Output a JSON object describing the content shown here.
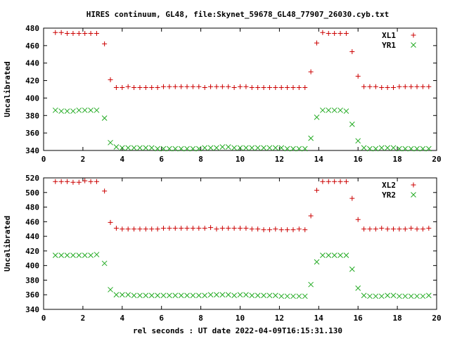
{
  "title": "HIRES continuum, GL48, file:Skynet_59678_GL48_77907_26030.cyb.txt",
  "xlabel": "rel seconds : UT date 2022-04-09T16:15:31.130",
  "colors": {
    "red": "#cc0000",
    "green": "#22aa22",
    "frame": "#000000"
  },
  "chart_data": [
    {
      "type": "scatter",
      "ylabel": "Uncalibrated",
      "xlim": [
        0,
        20
      ],
      "ylim": [
        340,
        480
      ],
      "xticks": [
        0,
        2,
        4,
        6,
        8,
        10,
        12,
        14,
        16,
        18,
        20
      ],
      "yticks": [
        340,
        360,
        380,
        400,
        420,
        440,
        460,
        480
      ],
      "legend_position": "top-right",
      "x": [
        0.6,
        0.9,
        1.2,
        1.5,
        1.8,
        2.1,
        2.4,
        2.7,
        3.1,
        3.4,
        3.7,
        4.0,
        4.3,
        4.6,
        4.9,
        5.2,
        5.5,
        5.8,
        6.1,
        6.4,
        6.7,
        7.0,
        7.3,
        7.6,
        7.9,
        8.2,
        8.5,
        8.8,
        9.1,
        9.4,
        9.7,
        10.0,
        10.3,
        10.6,
        10.9,
        11.2,
        11.5,
        11.8,
        12.1,
        12.4,
        12.7,
        13.0,
        13.3,
        13.6,
        13.9,
        14.2,
        14.5,
        14.8,
        15.1,
        15.4,
        15.7,
        16.0,
        16.3,
        16.6,
        16.9,
        17.2,
        17.5,
        17.8,
        18.1,
        18.4,
        18.7,
        19.0,
        19.3,
        19.6
      ],
      "series": [
        {
          "name": "XL1",
          "marker": "plus",
          "color": "#cc0000",
          "values": [
            475,
            475,
            474,
            474,
            474,
            474,
            474,
            474,
            462,
            421,
            412,
            412,
            413,
            412,
            412,
            412,
            412,
            412,
            413,
            413,
            413,
            413,
            413,
            413,
            413,
            412,
            413,
            413,
            413,
            413,
            412,
            413,
            413,
            412,
            412,
            412,
            412,
            412,
            412,
            412,
            412,
            412,
            412,
            430,
            463,
            475,
            474,
            474,
            474,
            474,
            453,
            425,
            413,
            413,
            413,
            412,
            412,
            412,
            413,
            413,
            413,
            413,
            413,
            413
          ]
        },
        {
          "name": "YR1",
          "marker": "cross",
          "color": "#22aa22",
          "values": [
            386,
            385,
            385,
            385,
            386,
            386,
            386,
            386,
            377,
            349,
            344,
            343,
            343,
            343,
            343,
            343,
            343,
            342,
            342,
            342,
            342,
            342,
            342,
            342,
            342,
            343,
            343,
            343,
            344,
            344,
            343,
            343,
            343,
            343,
            343,
            343,
            343,
            343,
            343,
            342,
            342,
            342,
            342,
            354,
            378,
            386,
            386,
            386,
            386,
            385,
            370,
            351,
            343,
            342,
            342,
            343,
            343,
            343,
            342,
            342,
            342,
            342,
            342,
            342
          ]
        }
      ]
    },
    {
      "type": "scatter",
      "ylabel": "Uncalibrated",
      "xlim": [
        0,
        20
      ],
      "ylim": [
        340,
        520
      ],
      "xticks": [
        0,
        2,
        4,
        6,
        8,
        10,
        12,
        14,
        16,
        18,
        20
      ],
      "yticks": [
        340,
        360,
        380,
        400,
        420,
        440,
        460,
        480,
        500,
        520
      ],
      "legend_position": "top-right",
      "x": [
        0.6,
        0.9,
        1.2,
        1.5,
        1.8,
        2.1,
        2.4,
        2.7,
        3.1,
        3.4,
        3.7,
        4.0,
        4.3,
        4.6,
        4.9,
        5.2,
        5.5,
        5.8,
        6.1,
        6.4,
        6.7,
        7.0,
        7.3,
        7.6,
        7.9,
        8.2,
        8.5,
        8.8,
        9.1,
        9.4,
        9.7,
        10.0,
        10.3,
        10.6,
        10.9,
        11.2,
        11.5,
        11.8,
        12.1,
        12.4,
        12.7,
        13.0,
        13.3,
        13.6,
        13.9,
        14.2,
        14.5,
        14.8,
        15.1,
        15.4,
        15.7,
        16.0,
        16.3,
        16.6,
        16.9,
        17.2,
        17.5,
        17.8,
        18.1,
        18.4,
        18.7,
        19.0,
        19.3,
        19.6
      ],
      "series": [
        {
          "name": "XL2",
          "marker": "plus",
          "color": "#cc0000",
          "values": [
            515,
            515,
            515,
            514,
            514,
            516,
            515,
            515,
            502,
            459,
            451,
            450,
            450,
            450,
            450,
            450,
            450,
            450,
            451,
            451,
            451,
            451,
            451,
            451,
            451,
            451,
            452,
            450,
            451,
            451,
            451,
            451,
            451,
            450,
            450,
            449,
            449,
            450,
            449,
            449,
            449,
            450,
            449,
            468,
            503,
            515,
            515,
            515,
            515,
            515,
            492,
            463,
            450,
            450,
            450,
            451,
            450,
            450,
            450,
            450,
            451,
            450,
            450,
            451
          ]
        },
        {
          "name": "YR2",
          "marker": "cross",
          "color": "#22aa22",
          "values": [
            414,
            414,
            414,
            414,
            414,
            414,
            414,
            415,
            403,
            367,
            360,
            360,
            360,
            359,
            359,
            359,
            359,
            359,
            359,
            359,
            359,
            359,
            359,
            359,
            359,
            359,
            360,
            360,
            360,
            360,
            359,
            360,
            360,
            359,
            359,
            359,
            359,
            359,
            358,
            358,
            358,
            358,
            358,
            374,
            405,
            414,
            414,
            414,
            414,
            414,
            395,
            369,
            359,
            358,
            358,
            358,
            359,
            359,
            358,
            358,
            358,
            358,
            358,
            359
          ]
        }
      ]
    }
  ]
}
